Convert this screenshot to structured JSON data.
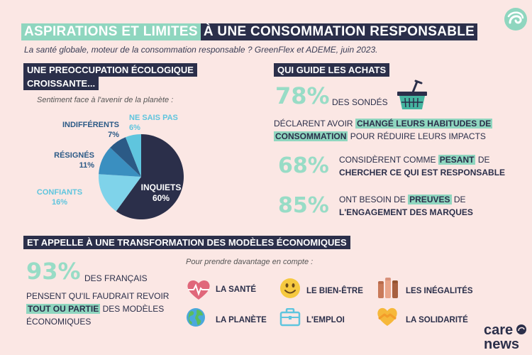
{
  "header": {
    "title_part1": "ASPIRATIONS ET LIMITES",
    "title_part2": "À UNE CONSOMMATION RESPONSABLE",
    "subtitle": "La santé globale, moteur de la consommation responsable ? GreenFlex et ADEME, juin 2023."
  },
  "section1": {
    "title_line1": "UNE PREOCCUPATION ÉCOLOGIQUE",
    "title_line2": "CROISSANTE...",
    "caption": "Sentiment face à l'avenir de la planète :"
  },
  "chart_data": {
    "type": "pie",
    "title": "",
    "series": [
      {
        "name": "INQUIETS",
        "value": 60,
        "label": "60%",
        "color": "#2b2f4a"
      },
      {
        "name": "CONFIANTS",
        "value": 16,
        "label": "16%",
        "color": "#7fd3ea"
      },
      {
        "name": "RÉSIGNÉS",
        "value": 11,
        "label": "11%",
        "color": "#3a8fc0"
      },
      {
        "name": "INDIFFÉRENTS",
        "value": 7,
        "label": "7%",
        "color": "#2b5a86"
      },
      {
        "name": "NE SAIS PAS",
        "value": 6,
        "label": "6%",
        "color": "#5fc5de"
      }
    ]
  },
  "section2": {
    "title": "QUI GUIDE LES ACHATS",
    "stat1": {
      "value": "78%",
      "text_after": "DES SONDÉS",
      "line2_pre": "DÉCLARENT AVOIR",
      "line2_hl": "CHANGÉ LEURS HABITUDES DE",
      "line3_hl": "CONSOMMATION",
      "line3_post": "POUR RÉDUIRE LEURS IMPACTS"
    },
    "stat2": {
      "value": "68%",
      "line1_pre": "CONSIDÈRENT COMME",
      "line1_hl": "PESANT",
      "line1_post": "DE",
      "line2": "CHERCHER CE QUI EST RESPONSABLE"
    },
    "stat3": {
      "value": "85%",
      "line1_pre": "ONT BESOIN DE",
      "line1_hl": "PREUVES",
      "line1_post": "DE",
      "line2": "L'ENGAGEMENT DES MARQUES"
    }
  },
  "section3": {
    "title": "ET APPELLE À UNE TRANSFORMATION DES MODÈLES ÉCONOMIQUES",
    "stat": {
      "value": "93%",
      "text_after": "DES FRANÇAIS",
      "line2": "PENSENT QU'IL FAUDRAIT REVOIR",
      "line3_hl": "TOUT OU PARTIE",
      "line3_post": "DES MODÈLES",
      "line4": "ÉCONOMIQUES"
    },
    "caption": "Pour prendre davantage en compte :",
    "items": [
      {
        "label": "LA SANTÉ",
        "icon": "heart-pulse-icon"
      },
      {
        "label": "LE BIEN-ÊTRE",
        "icon": "smiley-icon"
      },
      {
        "label": "LES INÉGALITÉS",
        "icon": "raised-fists-icon"
      },
      {
        "label": "LA PLANÈTE",
        "icon": "globe-icon"
      },
      {
        "label": "L'EMPLOI",
        "icon": "briefcase-icon"
      },
      {
        "label": "LA SOLIDARITÉ",
        "icon": "heart-hands-icon"
      }
    ]
  },
  "brand": {
    "line1": "care",
    "line2": "news"
  }
}
